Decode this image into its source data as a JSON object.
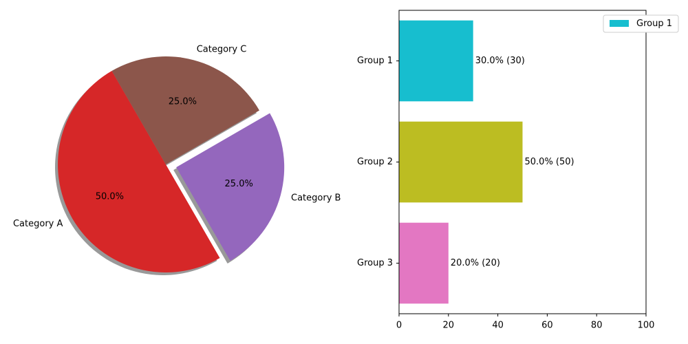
{
  "chart_data": [
    {
      "type": "pie",
      "categories": [
        "Category A",
        "Category B",
        "Category C"
      ],
      "values": [
        50,
        25,
        25
      ],
      "percent_labels": [
        "50.0%",
        "25.0%",
        "25.0%"
      ],
      "explode": [
        0,
        0.1,
        0
      ],
      "colors": [
        "#d62728",
        "#9467bd",
        "#8c564b"
      ],
      "shadow": true,
      "start_angle_deg": 120
    },
    {
      "type": "bar",
      "orientation": "horizontal",
      "categories": [
        "Group 1",
        "Group 2",
        "Group 3"
      ],
      "values": [
        30,
        50,
        20
      ],
      "data_labels": [
        "30.0% (30)",
        "50.0% (50)",
        "20.0% (20)"
      ],
      "colors": [
        "#17becf",
        "#bcbd22",
        "#e377c2"
      ],
      "xlim": [
        0,
        100
      ],
      "xticks": [
        "0",
        "20",
        "40",
        "60",
        "80",
        "100"
      ],
      "legend": {
        "entries": [
          "Group 1"
        ],
        "color": "#17becf",
        "placement": "top-right"
      }
    }
  ]
}
